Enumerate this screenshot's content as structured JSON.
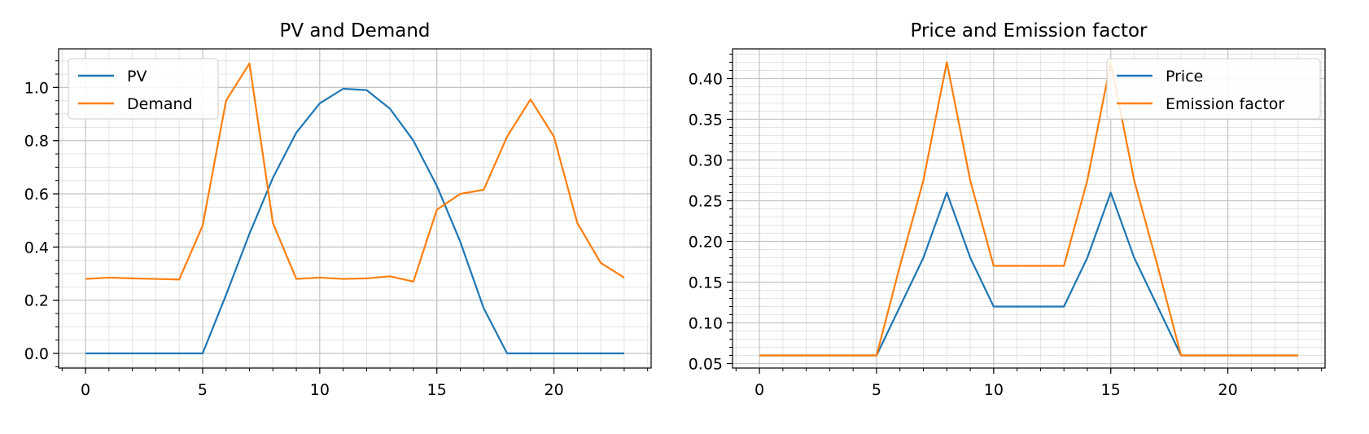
{
  "chart_data": [
    {
      "type": "line",
      "title": "PV and Demand",
      "xlabel": "",
      "ylabel": "",
      "xlim": [
        -1.15,
        24.15
      ],
      "ylim": [
        -0.055,
        1.145
      ],
      "x_ticks": [
        0,
        5,
        10,
        15,
        20
      ],
      "x_tick_labels": [
        "0",
        "5",
        "10",
        "15",
        "20"
      ],
      "y_ticks": [
        0.0,
        0.2,
        0.4,
        0.6,
        0.8,
        1.0
      ],
      "y_tick_labels": [
        "0.0",
        "0.2",
        "0.4",
        "0.6",
        "0.8",
        "1.0"
      ],
      "x_minor_step": 1,
      "y_minor_step": 0.05,
      "grid": true,
      "legend_position": "top-left",
      "x": [
        0,
        1,
        2,
        3,
        4,
        5,
        6,
        7,
        8,
        9,
        10,
        11,
        12,
        13,
        14,
        15,
        16,
        17,
        18,
        19,
        20,
        21,
        22,
        23
      ],
      "series": [
        {
          "name": "PV",
          "color": "#1f77b4",
          "values": [
            0,
            0,
            0,
            0,
            0,
            0,
            0.22,
            0.45,
            0.66,
            0.83,
            0.94,
            0.995,
            0.99,
            0.92,
            0.8,
            0.63,
            0.42,
            0.17,
            0,
            0,
            0,
            0,
            0,
            0
          ]
        },
        {
          "name": "Demand",
          "color": "#ff7f0e",
          "values": [
            0.28,
            0.285,
            0.282,
            0.28,
            0.278,
            0.48,
            0.95,
            1.09,
            0.49,
            0.28,
            0.285,
            0.28,
            0.282,
            0.29,
            0.27,
            0.54,
            0.6,
            0.615,
            0.815,
            0.955,
            0.815,
            0.49,
            0.34,
            0.285
          ]
        }
      ]
    },
    {
      "type": "line",
      "title": "Price and Emission factor",
      "xlabel": "",
      "ylabel": "",
      "xlim": [
        -1.15,
        24.15
      ],
      "ylim": [
        0.0445,
        0.4365
      ],
      "x_ticks": [
        0,
        5,
        10,
        15,
        20
      ],
      "x_tick_labels": [
        "0",
        "5",
        "10",
        "15",
        "20"
      ],
      "y_ticks": [
        0.05,
        0.1,
        0.15,
        0.2,
        0.25,
        0.3,
        0.35,
        0.4
      ],
      "y_tick_labels": [
        "0.05",
        "0.10",
        "0.15",
        "0.20",
        "0.25",
        "0.30",
        "0.35",
        "0.40"
      ],
      "x_minor_step": 1,
      "y_minor_step": 0.01,
      "grid": true,
      "legend_position": "top-right",
      "x": [
        0,
        1,
        2,
        3,
        4,
        5,
        6,
        7,
        8,
        9,
        10,
        11,
        12,
        13,
        14,
        15,
        16,
        17,
        18,
        19,
        20,
        21,
        22,
        23
      ],
      "series": [
        {
          "name": "Price",
          "color": "#1f77b4",
          "values": [
            0.06,
            0.06,
            0.06,
            0.06,
            0.06,
            0.06,
            0.12,
            0.18,
            0.26,
            0.18,
            0.12,
            0.12,
            0.12,
            0.12,
            0.18,
            0.26,
            0.18,
            0.12,
            0.06,
            0.06,
            0.06,
            0.06,
            0.06,
            0.06
          ]
        },
        {
          "name": "Emission factor",
          "color": "#ff7f0e",
          "values": [
            0.06,
            0.06,
            0.06,
            0.06,
            0.06,
            0.06,
            0.17,
            0.275,
            0.42,
            0.275,
            0.17,
            0.17,
            0.17,
            0.17,
            0.275,
            0.42,
            0.275,
            0.17,
            0.06,
            0.06,
            0.06,
            0.06,
            0.06,
            0.06
          ]
        }
      ]
    }
  ]
}
